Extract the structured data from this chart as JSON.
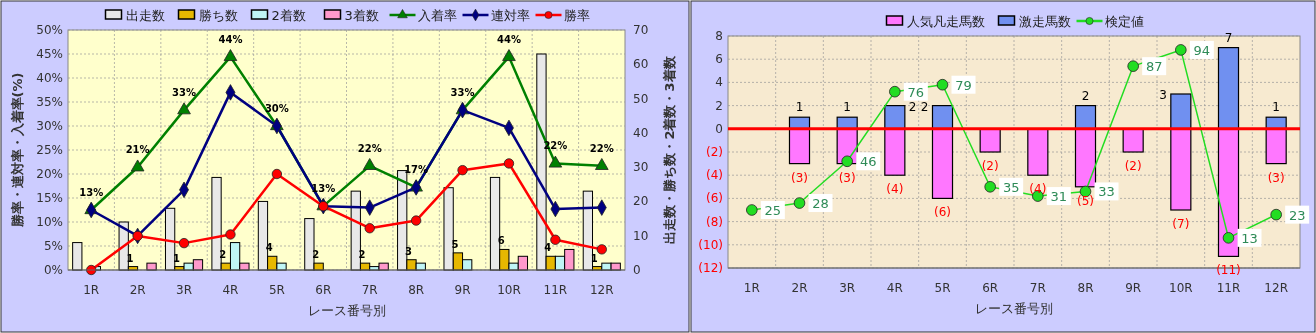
{
  "chart_data": [
    {
      "type": "bar",
      "xlabel": "レース番号別",
      "ylabel": "勝率・連対率・入着率(%)",
      "y2label": "出走数・勝ち数・2着数・3着数",
      "categories": [
        "1R",
        "2R",
        "3R",
        "4R",
        "5R",
        "6R",
        "7R",
        "8R",
        "9R",
        "10R",
        "11R",
        "12R"
      ],
      "series": [
        {
          "name": "出走数",
          "color": "#e8e8e8",
          "axis": "y2",
          "values": [
            8,
            14,
            18,
            27,
            20,
            15,
            23,
            29,
            24,
            27,
            63,
            23
          ]
        },
        {
          "name": "勝ち数",
          "color": "#e6b800",
          "axis": "y2",
          "values": [
            0,
            1,
            1,
            2,
            4,
            2,
            2,
            3,
            5,
            6,
            4,
            1
          ],
          "value_labels": [
            null,
            "1",
            "1",
            "2",
            "4",
            "2",
            "2",
            "3",
            "5",
            "6",
            "4",
            "1"
          ]
        },
        {
          "name": "2着数",
          "color": "#bff5f5",
          "axis": "y2",
          "values": [
            1,
            0,
            2,
            8,
            2,
            0,
            1,
            2,
            3,
            2,
            4,
            2
          ]
        },
        {
          "name": "3着数",
          "color": "#ff99cc",
          "axis": "y2",
          "values": [
            0,
            2,
            3,
            2,
            0,
            0,
            2,
            0,
            0,
            4,
            6,
            2
          ]
        },
        {
          "name": "入着率",
          "type": "line",
          "color": "#008000",
          "marker": "triangle",
          "values": [
            12.5,
            21.4,
            33.3,
            44.4,
            30,
            13.3,
            21.7,
            17.2,
            33.3,
            44.4,
            22.2,
            21.7
          ],
          "value_labels": [
            "13%",
            "21%",
            "33%",
            "44%",
            "30%",
            "13%",
            "22%",
            "17%",
            "33%",
            "44%",
            "22%",
            "22%"
          ]
        },
        {
          "name": "連対率",
          "type": "line",
          "color": "#000080",
          "marker": "diamond",
          "values": [
            12.5,
            7.1,
            16.7,
            37,
            30,
            13.3,
            13,
            17.2,
            33.3,
            29.6,
            12.7,
            13
          ]
        },
        {
          "name": "勝率",
          "type": "line",
          "color": "#ff0000",
          "marker": "circle",
          "values": [
            0,
            7.1,
            5.6,
            7.4,
            20,
            13.3,
            8.7,
            10.3,
            20.8,
            22.2,
            6.3,
            4.3
          ]
        }
      ],
      "ylim": [
        0,
        50
      ],
      "yticks": [
        {
          "value": 0,
          "label": "0%"
        },
        {
          "value": 5,
          "label": "5%"
        },
        {
          "value": 10,
          "label": "10%"
        },
        {
          "value": 15,
          "label": "15%"
        },
        {
          "value": 20,
          "label": "20%"
        },
        {
          "value": 25,
          "label": "25%"
        },
        {
          "value": 30,
          "label": "30%"
        },
        {
          "value": 35,
          "label": "35%"
        },
        {
          "value": 40,
          "label": "40%"
        },
        {
          "value": 45,
          "label": "45%"
        },
        {
          "value": 50,
          "label": "50%"
        }
      ],
      "y2lim": [
        0,
        70
      ],
      "y2ticks": [
        0,
        10,
        20,
        30,
        40,
        50,
        60,
        70
      ],
      "grid": true,
      "legend": "top"
    },
    {
      "type": "bar",
      "xlabel": "レース番号別",
      "categories": [
        "1R",
        "2R",
        "3R",
        "4R",
        "5R",
        "6R",
        "7R",
        "8R",
        "9R",
        "10R",
        "11R",
        "12R"
      ],
      "stacked": true,
      "series": [
        {
          "name": "人気凡走馬数",
          "color": "#ff77ff",
          "values": [
            0,
            -3,
            -3,
            -4,
            -6,
            -2,
            -4,
            -5,
            -2,
            -7,
            -11,
            -3
          ],
          "value_labels": [
            null,
            "(3)",
            "(3)",
            "(4)",
            "(6)",
            "(2)",
            "(4)",
            "(5)",
            "(2)",
            "(7)",
            "(11)",
            "(3)"
          ]
        },
        {
          "name": "激走馬数",
          "color": "#7090f0",
          "values": [
            0,
            1,
            1,
            2,
            2,
            0,
            0,
            2,
            0,
            3,
            7,
            1
          ],
          "value_labels": [
            null,
            "1",
            "1",
            "2",
            "2",
            null,
            null,
            "2",
            null,
            "3",
            "7",
            "1"
          ]
        },
        {
          "name": "検定値",
          "type": "line",
          "color": "#22dd22",
          "marker": "circle",
          "axis": "y2",
          "values": [
            25,
            28,
            46,
            76,
            79,
            35,
            31,
            33,
            87,
            94,
            13,
            23
          ],
          "value_labels": [
            "25",
            "28",
            "46",
            "76",
            "79",
            "35",
            "31",
            "33",
            "87",
            "94",
            "13",
            "23"
          ]
        }
      ],
      "ylim": [
        -12,
        8
      ],
      "yticks": [
        8,
        6,
        4,
        2,
        0,
        {
          "value": -2,
          "label": "(2)"
        },
        {
          "value": -4,
          "label": "(4)"
        },
        {
          "value": -6,
          "label": "(6)"
        },
        {
          "value": -8,
          "label": "(8)"
        },
        {
          "value": -10,
          "label": "(10)"
        },
        {
          "value": -12,
          "label": "(12)"
        }
      ],
      "y2lim": [
        0,
        100
      ],
      "grid": true,
      "legend": "top",
      "ref_lines": [
        {
          "axis": "y",
          "value": 0,
          "color": "#ff0000"
        }
      ]
    }
  ]
}
